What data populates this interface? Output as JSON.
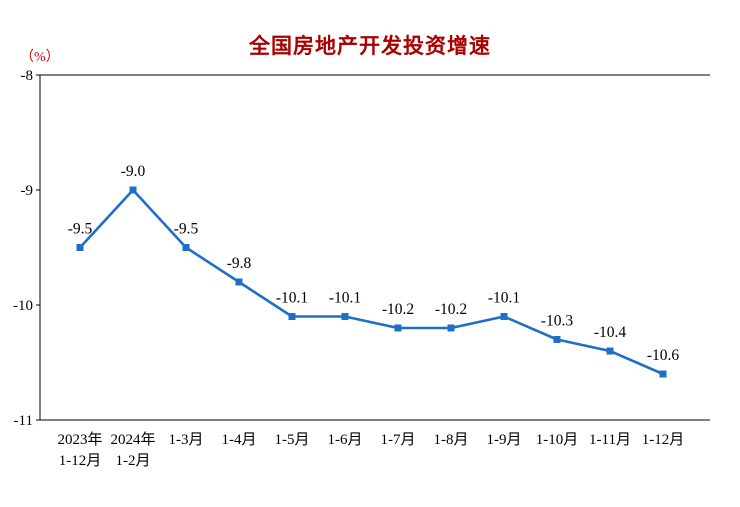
{
  "chart_data": {
    "type": "line",
    "title": "全国房地产开发投资增速",
    "unit_label": "（%）",
    "categories": [
      "2023年\n1-12月",
      "2024年\n1-2月",
      "1-3月",
      "1-4月",
      "1-5月",
      "1-6月",
      "1-7月",
      "1-8月",
      "1-9月",
      "1-10月",
      "1-11月",
      "1-12月"
    ],
    "values": [
      -9.5,
      -9.0,
      -9.5,
      -9.8,
      -10.1,
      -10.1,
      -10.2,
      -10.2,
      -10.1,
      -10.3,
      -10.4,
      -10.6
    ],
    "ylim": [
      -11,
      -8
    ],
    "yticks": [
      -8,
      -9,
      -10,
      -11
    ],
    "grid": false,
    "legend": "none",
    "colors": {
      "line": "#1f6fc8",
      "title": "#aa0000",
      "unit": "#dd0000",
      "axis": "#000000",
      "label": "#000000"
    }
  }
}
